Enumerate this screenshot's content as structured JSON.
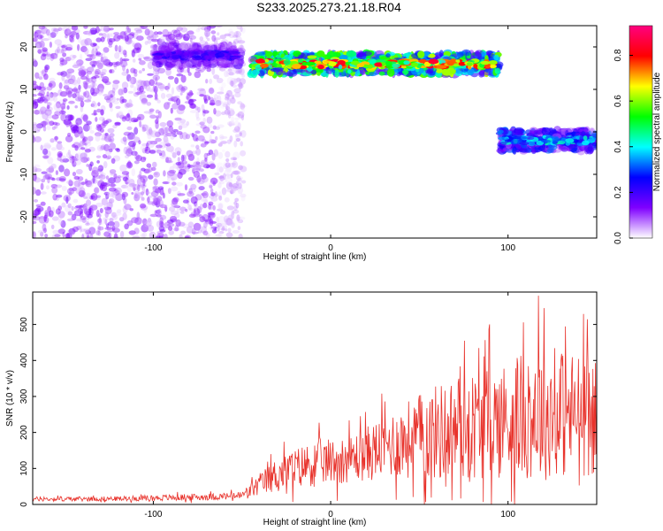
{
  "chart_data": [
    {
      "type": "heatmap",
      "title": "S233.2025.273.21.18.R04",
      "xlabel": "Height of straight line (km)",
      "ylabel": "Frequency (Hz)",
      "xlim": [
        -168,
        150
      ],
      "ylim": [
        -25,
        25
      ],
      "xticks": [
        -100,
        0,
        100
      ],
      "yticks": [
        -20,
        -10,
        0,
        10,
        20
      ],
      "colorbar": {
        "label": "Normalized spectral amplitude",
        "range": [
          0,
          0.93
        ],
        "ticks": [
          "0.0",
          "0.2",
          "0.4",
          "0.6",
          "0.8"
        ],
        "colormap": [
          "#ffffff",
          "#7f00ff",
          "#0000ff",
          "#00ffff",
          "#00ff00",
          "#ffff00",
          "#ff0000",
          "#ff0080"
        ]
      },
      "features": [
        {
          "name": "diffuse noise",
          "x_range": [
            -168,
            -55
          ],
          "freq_range": [
            -25,
            25
          ],
          "amplitude": 0.1
        },
        {
          "name": "upper band",
          "x_range": [
            -100,
            -50
          ],
          "freq_center": 18,
          "amplitude": 0.25
        },
        {
          "name": "main band",
          "x_range": [
            -45,
            95
          ],
          "freq_center": 16,
          "amplitude": 0.85
        },
        {
          "name": "lower band",
          "x_range": [
            95,
            150
          ],
          "freq_center": -2,
          "amplitude": 0.45
        }
      ]
    },
    {
      "type": "line",
      "title": "",
      "xlabel": "Height of straight line (km)",
      "ylabel": "SNR (10 * v/v)",
      "xlim": [
        -168,
        150
      ],
      "ylim": [
        0,
        590
      ],
      "xticks": [
        -100,
        0,
        100
      ],
      "yticks": [
        0,
        100,
        200,
        300,
        400,
        500
      ],
      "series": [
        {
          "name": "SNR",
          "color": "#e8322b",
          "x": [
            -168,
            -150,
            -120,
            -100,
            -80,
            -60,
            -50,
            -40,
            -30,
            -20,
            -10,
            0,
            10,
            20,
            30,
            40,
            50,
            60,
            70,
            80,
            90,
            100,
            110,
            120,
            130,
            140,
            150
          ],
          "mean": [
            15,
            15,
            16,
            18,
            20,
            22,
            25,
            55,
            85,
            100,
            115,
            120,
            125,
            140,
            160,
            175,
            190,
            200,
            210,
            220,
            230,
            235,
            245,
            250,
            255,
            250,
            240
          ],
          "amplitude": [
            8,
            8,
            8,
            10,
            12,
            12,
            15,
            40,
            60,
            70,
            80,
            80,
            80,
            95,
            110,
            130,
            150,
            170,
            180,
            190,
            200,
            210,
            220,
            230,
            230,
            220,
            200
          ],
          "peak_x": 117,
          "peak_value": 580
        }
      ]
    }
  ]
}
